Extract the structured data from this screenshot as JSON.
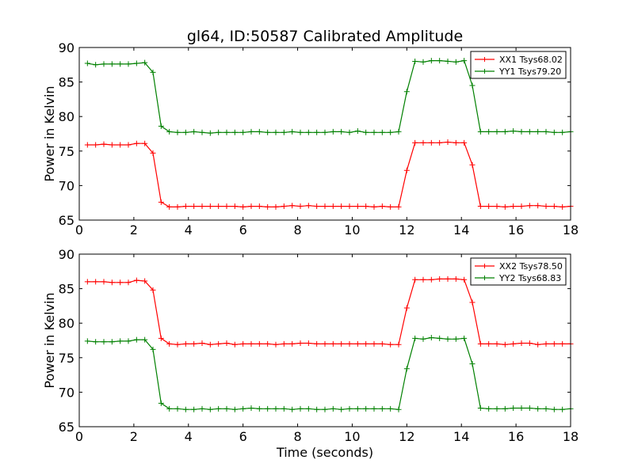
{
  "figure_title": "gl64, ID:50587 Calibrated Amplitude",
  "colors": {
    "red": "#ff0000",
    "green": "#008000",
    "axis": "#000000"
  },
  "chart_data": [
    {
      "type": "line",
      "title": "gl64, ID:50587 Calibrated Amplitude",
      "xlabel": "",
      "ylabel": "Power in Kelvin",
      "xlim": [
        0,
        18
      ],
      "ylim": [
        65,
        90
      ],
      "xticks": [
        0,
        2,
        4,
        6,
        8,
        10,
        12,
        14,
        16,
        18
      ],
      "yticks": [
        65,
        70,
        75,
        80,
        85,
        90
      ],
      "legend_position": "top-right",
      "x": [
        0.3,
        0.6,
        0.9,
        1.2,
        1.5,
        1.8,
        2.1,
        2.4,
        2.7,
        3.0,
        3.3,
        3.6,
        3.9,
        4.2,
        4.5,
        4.8,
        5.1,
        5.4,
        5.7,
        6.0,
        6.3,
        6.6,
        6.9,
        7.2,
        7.5,
        7.8,
        8.1,
        8.4,
        8.7,
        9.0,
        9.3,
        9.6,
        9.9,
        10.2,
        10.5,
        10.8,
        11.1,
        11.4,
        11.7,
        12.0,
        12.3,
        12.6,
        12.9,
        13.2,
        13.5,
        13.8,
        14.1,
        14.4,
        14.7,
        15.0,
        15.3,
        15.6,
        15.9,
        16.2,
        16.5,
        16.8,
        17.1,
        17.4,
        17.7,
        18.0
      ],
      "series": [
        {
          "name": "XX1 Tsys68.02",
          "color": "#ff0000",
          "values": [
            75.9,
            75.9,
            76.0,
            75.9,
            75.9,
            75.9,
            76.1,
            76.1,
            74.7,
            67.6,
            66.9,
            66.9,
            67.0,
            67.0,
            67.0,
            67.0,
            67.0,
            67.0,
            67.0,
            66.9,
            67.0,
            67.0,
            66.9,
            66.9,
            67.0,
            67.1,
            67.0,
            67.1,
            67.0,
            67.0,
            67.0,
            67.0,
            67.0,
            67.0,
            67.0,
            66.9,
            67.0,
            66.9,
            66.9,
            72.2,
            76.2,
            76.2,
            76.2,
            76.2,
            76.3,
            76.2,
            76.2,
            73.0,
            67.0,
            67.0,
            67.0,
            66.9,
            67.0,
            67.0,
            67.1,
            67.1,
            67.0,
            67.0,
            66.9,
            67.0
          ]
        },
        {
          "name": "YY1 Tsys79.20",
          "color": "#008000",
          "values": [
            87.7,
            87.5,
            87.6,
            87.6,
            87.6,
            87.6,
            87.7,
            87.8,
            86.4,
            78.6,
            77.8,
            77.7,
            77.7,
            77.8,
            77.7,
            77.6,
            77.7,
            77.7,
            77.7,
            77.7,
            77.8,
            77.8,
            77.7,
            77.7,
            77.7,
            77.8,
            77.7,
            77.7,
            77.7,
            77.7,
            77.8,
            77.8,
            77.7,
            77.9,
            77.7,
            77.7,
            77.7,
            77.7,
            77.8,
            83.6,
            88.0,
            87.9,
            88.1,
            88.1,
            88.0,
            87.9,
            88.1,
            84.5,
            77.8,
            77.8,
            77.8,
            77.8,
            77.9,
            77.8,
            77.8,
            77.8,
            77.8,
            77.7,
            77.7,
            77.8
          ]
        }
      ]
    },
    {
      "type": "line",
      "title": "",
      "xlabel": "Time (seconds)",
      "ylabel": "Power in Kelvin",
      "xlim": [
        0,
        18
      ],
      "ylim": [
        65,
        90
      ],
      "xticks": [
        0,
        2,
        4,
        6,
        8,
        10,
        12,
        14,
        16,
        18
      ],
      "yticks": [
        65,
        70,
        75,
        80,
        85,
        90
      ],
      "legend_position": "top-right",
      "x": [
        0.3,
        0.6,
        0.9,
        1.2,
        1.5,
        1.8,
        2.1,
        2.4,
        2.7,
        3.0,
        3.3,
        3.6,
        3.9,
        4.2,
        4.5,
        4.8,
        5.1,
        5.4,
        5.7,
        6.0,
        6.3,
        6.6,
        6.9,
        7.2,
        7.5,
        7.8,
        8.1,
        8.4,
        8.7,
        9.0,
        9.3,
        9.6,
        9.9,
        10.2,
        10.5,
        10.8,
        11.1,
        11.4,
        11.7,
        12.0,
        12.3,
        12.6,
        12.9,
        13.2,
        13.5,
        13.8,
        14.1,
        14.4,
        14.7,
        15.0,
        15.3,
        15.6,
        15.9,
        16.2,
        16.5,
        16.8,
        17.1,
        17.4,
        17.7,
        18.0
      ],
      "series": [
        {
          "name": "XX2 Tsys78.50",
          "color": "#ff0000",
          "values": [
            86.0,
            86.0,
            86.0,
            85.9,
            85.9,
            85.9,
            86.2,
            86.1,
            84.8,
            77.8,
            77.0,
            76.9,
            77.0,
            77.0,
            77.1,
            76.9,
            77.0,
            77.1,
            76.9,
            77.0,
            77.0,
            77.0,
            77.0,
            76.9,
            77.0,
            77.0,
            77.1,
            77.1,
            77.0,
            77.0,
            77.0,
            77.0,
            77.0,
            77.0,
            77.0,
            77.0,
            77.0,
            76.9,
            76.9,
            82.2,
            86.3,
            86.3,
            86.3,
            86.4,
            86.4,
            86.4,
            86.3,
            83.0,
            77.0,
            77.0,
            77.0,
            76.9,
            77.0,
            77.1,
            77.1,
            76.9,
            77.0,
            77.0,
            77.0,
            77.0
          ]
        },
        {
          "name": "YY2 Tsys68.83",
          "color": "#008000",
          "values": [
            77.4,
            77.3,
            77.3,
            77.3,
            77.4,
            77.4,
            77.6,
            77.6,
            76.2,
            68.4,
            67.6,
            67.6,
            67.5,
            67.5,
            67.6,
            67.5,
            67.6,
            67.6,
            67.5,
            67.6,
            67.7,
            67.6,
            67.6,
            67.6,
            67.6,
            67.5,
            67.6,
            67.6,
            67.5,
            67.5,
            67.6,
            67.5,
            67.6,
            67.6,
            67.6,
            67.6,
            67.6,
            67.6,
            67.5,
            73.4,
            77.8,
            77.7,
            77.9,
            77.8,
            77.7,
            77.7,
            77.8,
            74.1,
            67.7,
            67.6,
            67.6,
            67.6,
            67.7,
            67.7,
            67.7,
            67.6,
            67.6,
            67.5,
            67.5,
            67.6
          ]
        }
      ]
    }
  ]
}
